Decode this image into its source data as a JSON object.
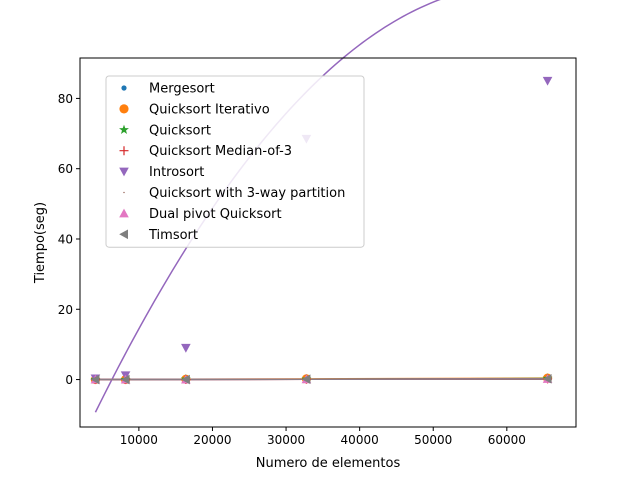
{
  "chart_data": {
    "type": "scatter",
    "xlabel": "Numero de elementos",
    "ylabel": "Tiempo(seg)",
    "xlim": [
      2000,
      69400
    ],
    "ylim": [
      -13.5,
      91.5
    ],
    "x_ticks": [
      10000,
      20000,
      30000,
      40000,
      50000,
      60000
    ],
    "x_tick_labels": [
      "10000",
      "20000",
      "30000",
      "40000",
      "50000",
      "60000"
    ],
    "y_ticks": [
      0,
      20,
      40,
      60,
      80
    ],
    "y_tick_labels": [
      "0",
      "20",
      "40",
      "60",
      "80"
    ],
    "grid": false,
    "legend_position": "upper-left",
    "x": [
      4096,
      8192,
      16384,
      32768,
      65536
    ],
    "series": [
      {
        "name": "Mergesort",
        "marker": "dot",
        "color": "#1f77b4",
        "values": [
          0.0,
          0.0,
          0.1,
          0.1,
          0.3
        ]
      },
      {
        "name": "Quicksort Iterativo",
        "marker": "circle",
        "color": "#ff7f0e",
        "values": [
          0.0,
          0.0,
          0.1,
          0.2,
          0.4
        ]
      },
      {
        "name": "Quicksort",
        "marker": "star",
        "color": "#2ca02c",
        "values": [
          0.0,
          0.0,
          0.1,
          0.1,
          0.3
        ]
      },
      {
        "name": "Quicksort Median-of-3",
        "marker": "plus",
        "color": "#d62728",
        "values": [
          0.0,
          0.0,
          0.0,
          0.1,
          0.2
        ]
      },
      {
        "name": "Introsort",
        "marker": "triangle-down",
        "color": "#9467bd",
        "values": [
          0.3,
          1.2,
          9.0,
          68.5,
          85.0
        ],
        "fit": {
          "degree": 2,
          "coefficients": [
            -3.7e-08,
            0.004544,
            -27.3
          ]
        }
      },
      {
        "name": "Quicksort with 3-way partition",
        "marker": "pixel",
        "color": "#8c564b",
        "values": [
          0.0,
          0.0,
          0.0,
          0.1,
          0.1
        ]
      },
      {
        "name": "Dual pivot Quicksort",
        "marker": "triangle-up",
        "color": "#e377c2",
        "values": [
          0.0,
          0.0,
          0.0,
          0.1,
          0.2
        ]
      },
      {
        "name": "Timsort",
        "marker": "triangle-left",
        "color": "#7f7f7f",
        "values": [
          0.0,
          0.0,
          0.0,
          0.1,
          0.2
        ]
      }
    ]
  }
}
